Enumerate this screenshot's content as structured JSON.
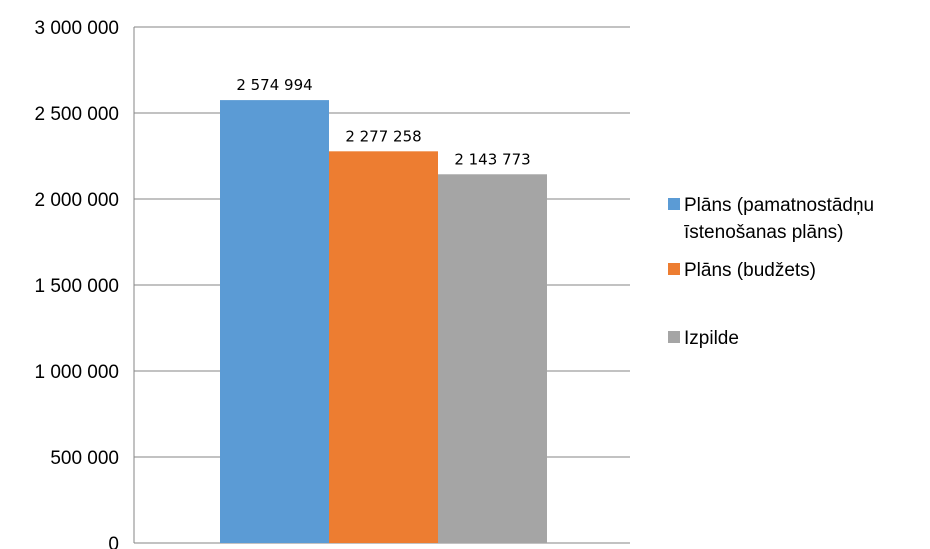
{
  "chart_data": {
    "type": "bar",
    "categories": [
      ""
    ],
    "series": [
      {
        "name": "Plāns (pamatnostādņu īstenošanas plāns)",
        "legend_lines": [
          "Plāns (pamatnostādņu",
          "īstenošanas plāns)"
        ],
        "values": [
          2574994
        ],
        "label": "2 574 994",
        "color": "#5b9bd5"
      },
      {
        "name": "Plāns (budžets)",
        "legend_lines": [
          "Plāns (budžets)"
        ],
        "values": [
          2277258
        ],
        "label": "2 277 258",
        "color": "#ed7d31"
      },
      {
        "name": "Izpilde",
        "legend_lines": [
          "Izpilde"
        ],
        "values": [
          2143773
        ],
        "label": "2 143 773",
        "color": "#a5a5a5"
      }
    ],
    "y_ticks": [
      0,
      500000,
      1000000,
      1500000,
      2000000,
      2500000,
      3000000
    ],
    "y_tick_labels": [
      "0",
      "500 000",
      "1 000 000",
      "1 500 000",
      "2 000 000",
      "2 500 000",
      "3 000 000"
    ],
    "ylim": [
      0,
      3000000
    ],
    "title": "",
    "xlabel": "",
    "ylabel": "",
    "grid": true,
    "legend_position": "right",
    "gridline_color": "#868686"
  }
}
